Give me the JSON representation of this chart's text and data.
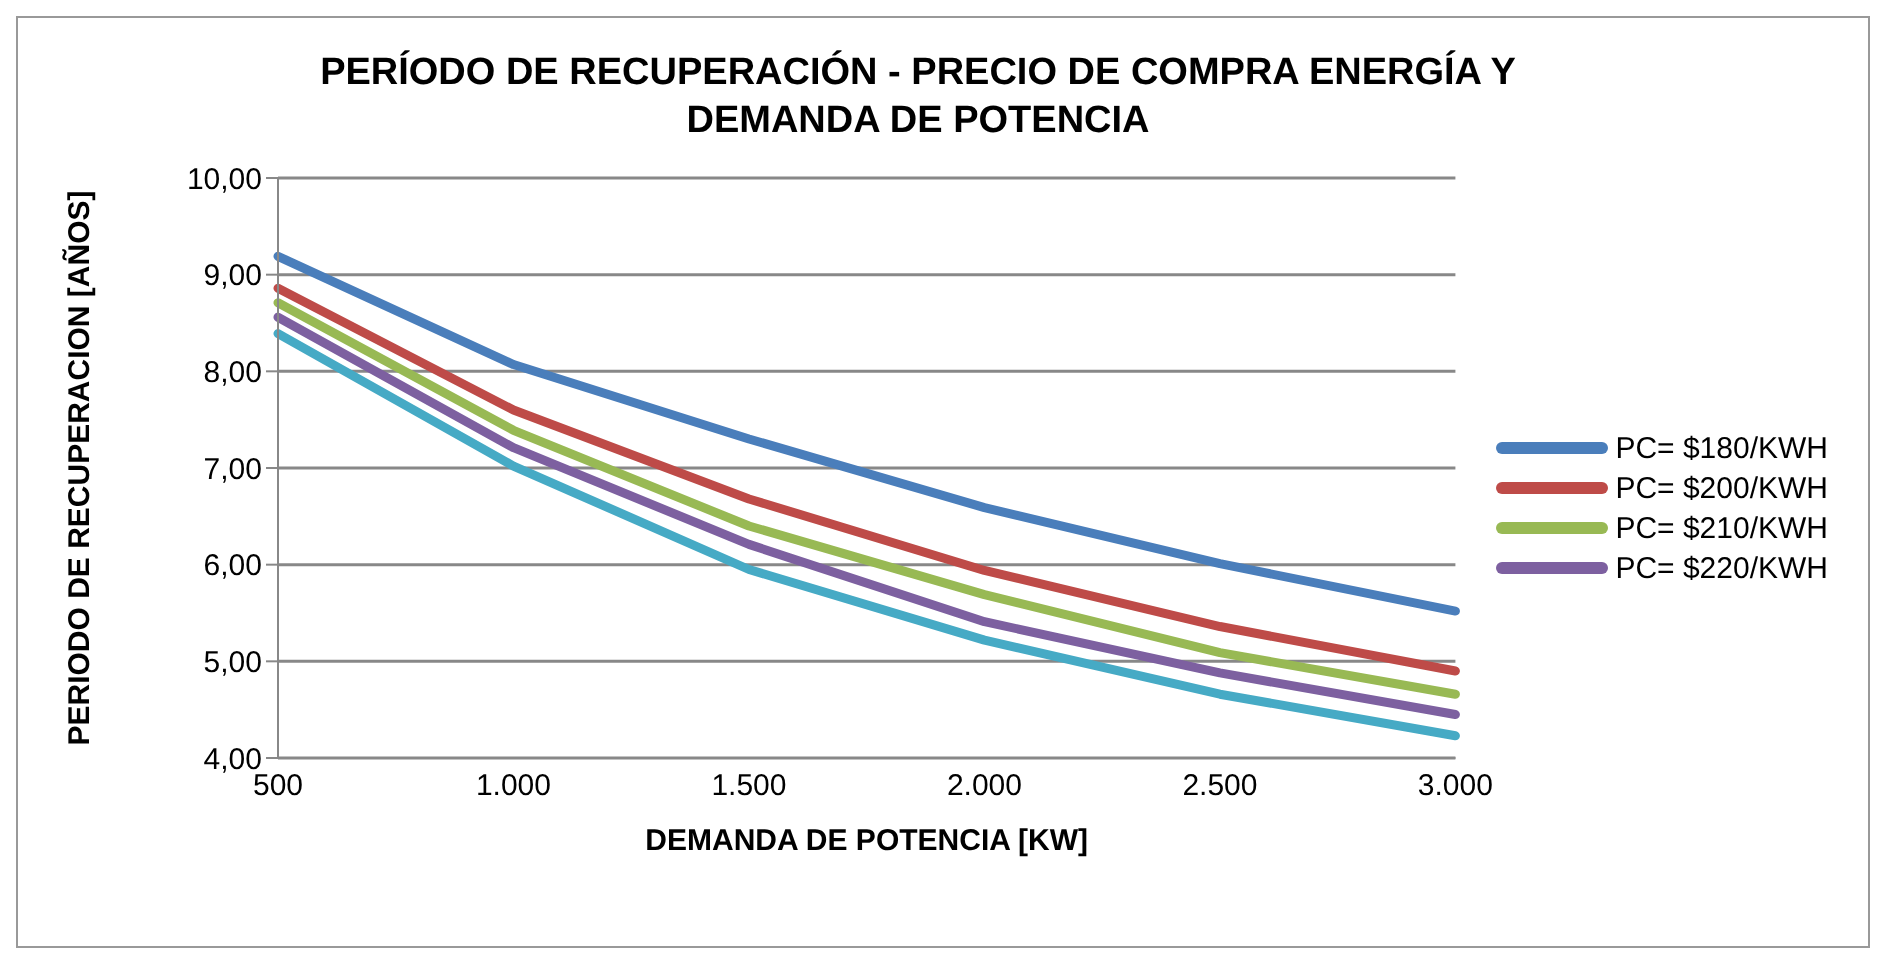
{
  "chart_data": {
    "type": "line",
    "title": "PERÍODO DE RECUPERACIÓN - PRECIO DE COMPRA ENERGÍA Y DEMANDA DE POTENCIA",
    "xlabel": "DEMANDA DE POTENCIA [KW]",
    "ylabel": "PERIODO DE RECUPERACION [AÑOS]",
    "categories": [
      "500",
      "1.000",
      "1.500",
      "2.000",
      "2.500",
      "3.000"
    ],
    "series": [
      {
        "name": "PC= $180/KWH",
        "color": "#4a7ebb",
        "values": [
          9.19,
          8.07,
          7.3,
          6.59,
          6.01,
          5.52
        ]
      },
      {
        "name": "PC= $200/KWH",
        "color": "#be4b48",
        "values": [
          8.86,
          7.6,
          6.68,
          5.94,
          5.36,
          4.9
        ]
      },
      {
        "name": "PC= $210/KWH",
        "color": "#98b954",
        "values": [
          8.71,
          7.39,
          6.4,
          5.69,
          5.09,
          4.66
        ]
      },
      {
        "name": "PC= $220/KWH",
        "color": "#7d60a0",
        "values": [
          8.56,
          7.21,
          6.21,
          5.41,
          4.88,
          4.45
        ]
      },
      {
        "color": "#46aac5",
        "values": [
          8.39,
          7.02,
          5.95,
          5.22,
          4.66,
          4.23
        ]
      }
    ],
    "ylim": [
      4,
      10
    ],
    "yticks": [
      {
        "value": 4,
        "label": "4,00"
      },
      {
        "value": 5,
        "label": "5,00"
      },
      {
        "value": 6,
        "label": "6,00"
      },
      {
        "value": 7,
        "label": "7,00"
      },
      {
        "value": 8,
        "label": "8,00"
      },
      {
        "value": 9,
        "label": "9,00"
      },
      {
        "value": 10,
        "label": "10,00"
      }
    ],
    "grid": "y",
    "legend": "right",
    "marker": "none",
    "line_style": "solid"
  }
}
